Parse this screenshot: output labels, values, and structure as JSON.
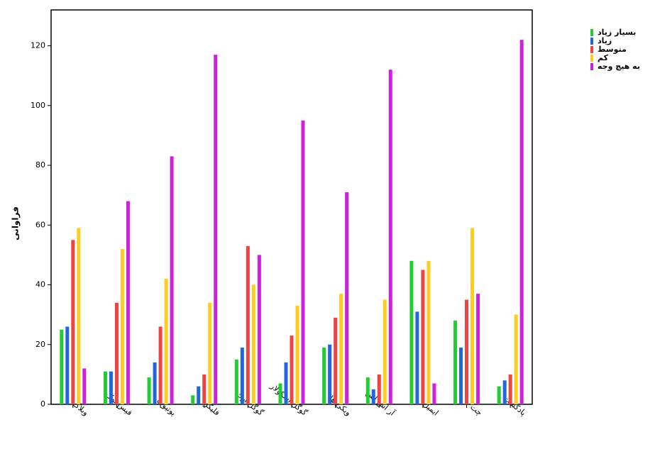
{
  "chart_data": {
    "type": "bar",
    "y_label": "فراوانی",
    "categories": [
      "وبلاگ",
      "فیس بوک",
      "یوتیوب",
      "فلیکر",
      "گوگل ارث",
      "گوگل اسکولار",
      "ویکی ها",
      "آر اس اس",
      "ایمیل",
      "چت",
      "پادکست"
    ],
    "series": [
      {
        "name": "بسیار زیاد",
        "color": "#22cc33",
        "values": [
          25,
          11,
          9,
          3,
          15,
          7,
          19,
          9,
          48,
          28,
          6
        ]
      },
      {
        "name": "زیاد",
        "color": "#2266dd",
        "values": [
          26,
          11,
          14,
          6,
          19,
          14,
          20,
          5,
          31,
          19,
          8
        ]
      },
      {
        "name": "متوسط",
        "color": "#ee4444",
        "values": [
          55,
          34,
          26,
          10,
          53,
          23,
          29,
          10,
          45,
          35,
          10
        ]
      },
      {
        "name": "کم",
        "color": "#ffcc22",
        "values": [
          59,
          52,
          42,
          34,
          40,
          33,
          37,
          35,
          48,
          59,
          30
        ]
      },
      {
        "name": "به هیچ وجه",
        "color": "#cc22dd",
        "values": [
          12,
          68,
          83,
          117,
          50,
          95,
          71,
          112,
          7,
          37,
          122
        ]
      }
    ],
    "ylim": [
      0,
      132
    ],
    "yticks": [
      0,
      20,
      40,
      60,
      80,
      100,
      120
    ],
    "grid": false,
    "legend": "right"
  }
}
